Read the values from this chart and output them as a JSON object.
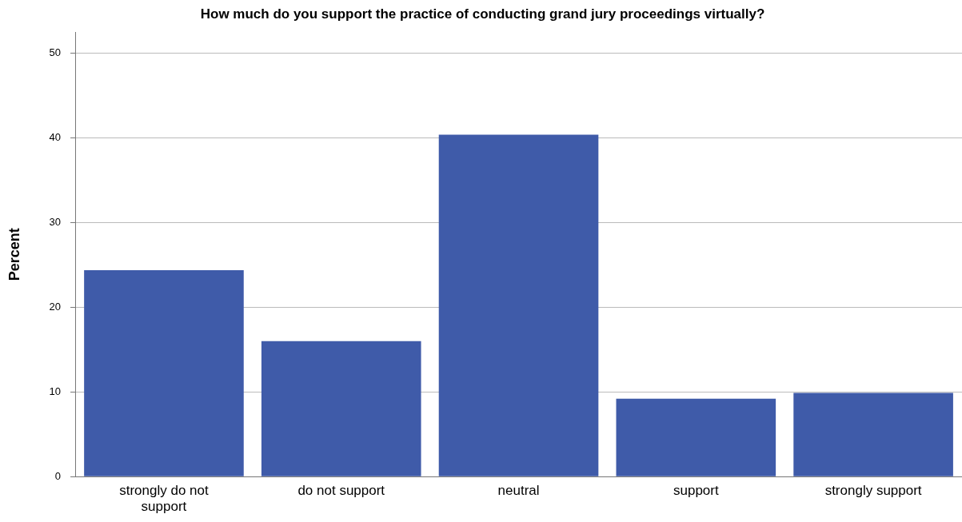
{
  "chart_data": {
    "type": "bar",
    "title": "How much do you support the practice of conducting grand jury proceedings virtually?",
    "ylabel": "Percent",
    "categories": [
      "strongly do not support",
      "do not support",
      "neutral",
      "support",
      "strongly support"
    ],
    "values": [
      24.4,
      16.0,
      40.4,
      9.2,
      9.9
    ],
    "color": "#3f5ba9",
    "ylim": [
      0,
      52.5
    ],
    "yticks": [
      0,
      10,
      20,
      30,
      40,
      50
    ],
    "grid": "y",
    "legend": false
  }
}
